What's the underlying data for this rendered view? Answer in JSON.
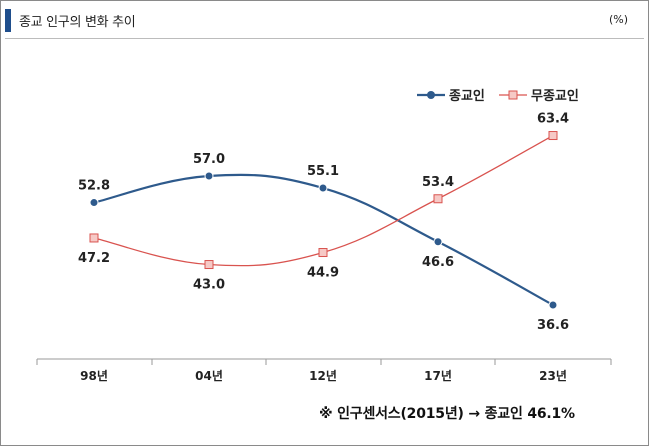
{
  "header": {
    "title": "종교 인구의 변화 추이",
    "unit": "(%)",
    "accent_color": "#1f4e8c"
  },
  "note": "※ 인구센서스(2015년) → 종교인 46.1%",
  "chart_data": {
    "type": "line",
    "categories": [
      "98년",
      "04년",
      "12년",
      "17년",
      "23년"
    ],
    "series": [
      {
        "name": "종교인",
        "values": [
          52.8,
          57.0,
          55.1,
          46.6,
          36.6
        ],
        "color": "#2e5a8c",
        "marker": "circle"
      },
      {
        "name": "무종교인",
        "values": [
          47.2,
          43.0,
          44.9,
          53.4,
          63.4
        ],
        "color": "#d9534f",
        "marker": "square"
      }
    ],
    "labels": {
      "종교인": [
        "52.8",
        "57.0",
        "55.1",
        "46.6",
        "36.6"
      ],
      "무종교인": [
        "47.2",
        "43.0",
        "44.9",
        "53.4",
        "63.4"
      ]
    },
    "title": "",
    "xlabel": "",
    "ylabel": "",
    "ylim": [
      30,
      70
    ],
    "grid": false,
    "legend_position": "top-right"
  }
}
